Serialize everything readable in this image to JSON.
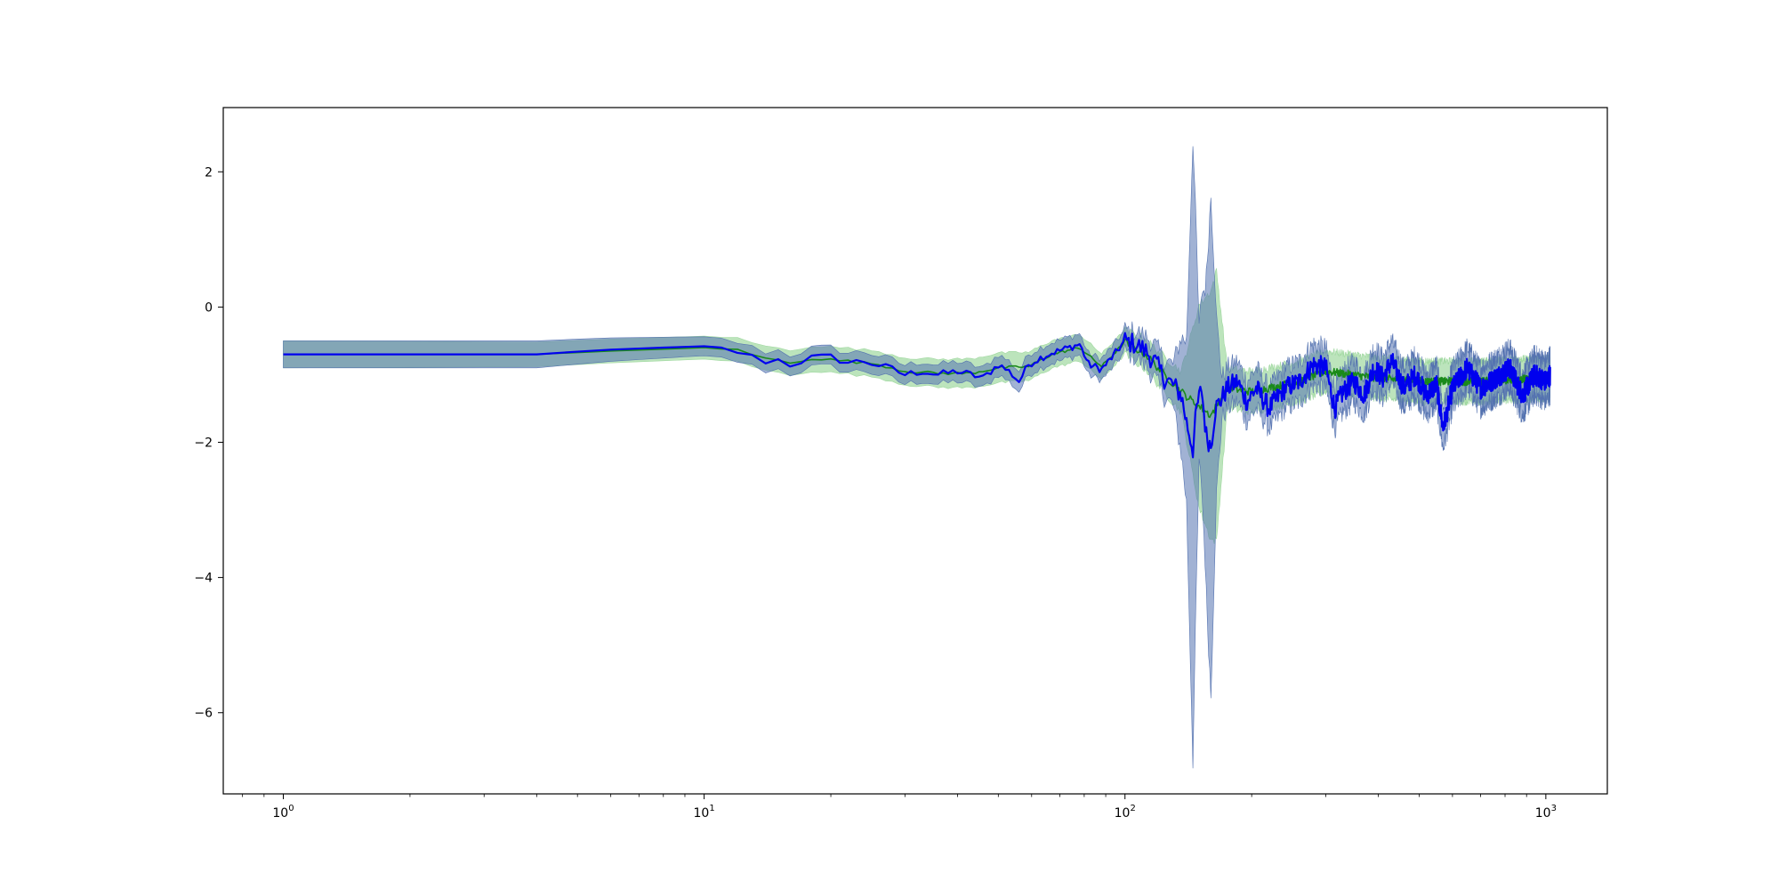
{
  "chart_data": {
    "type": "line",
    "title": "",
    "xlabel": "",
    "ylabel": "",
    "xscale": "log",
    "xlim": [
      0.72,
      1400
    ],
    "ylim": [
      -7.2,
      2.95
    ],
    "grid": false,
    "x_ticks": [
      {
        "value": 1,
        "base": "10",
        "exp": "0"
      },
      {
        "value": 10,
        "base": "10",
        "exp": "1"
      },
      {
        "value": 100,
        "base": "10",
        "exp": "2"
      },
      {
        "value": 1000,
        "base": "10",
        "exp": "3"
      }
    ],
    "y_ticks": [
      {
        "value": 2,
        "label": "2"
      },
      {
        "value": 0,
        "label": "0"
      },
      {
        "value": -2,
        "label": "−2"
      },
      {
        "value": -4,
        "label": "−4"
      },
      {
        "value": -6,
        "label": "−6"
      }
    ],
    "series": [
      {
        "color": "#0000ee",
        "band_color": "#5472b0",
        "points": [
          [
            1,
            -0.7
          ],
          [
            2,
            -0.7
          ],
          [
            4,
            -0.7
          ],
          [
            5,
            -0.66
          ],
          [
            6,
            -0.63
          ],
          [
            8,
            -0.6
          ],
          [
            10,
            -0.58
          ],
          [
            11,
            -0.6
          ],
          [
            12,
            -0.66
          ],
          [
            13,
            -0.74
          ],
          [
            14,
            -0.8
          ],
          [
            15,
            -0.78
          ],
          [
            16,
            -0.85
          ],
          [
            17,
            -0.8
          ],
          [
            18,
            -0.75
          ],
          [
            20,
            -0.74
          ],
          [
            22,
            -0.82
          ],
          [
            24,
            -0.8
          ],
          [
            26,
            -0.86
          ],
          [
            28,
            -0.92
          ],
          [
            30,
            -1.0
          ],
          [
            33,
            -0.95
          ],
          [
            36,
            -1.0
          ],
          [
            40,
            -0.95
          ],
          [
            43,
            -1.0
          ],
          [
            46,
            -1.05
          ],
          [
            50,
            -0.85
          ],
          [
            53,
            -0.95
          ],
          [
            56,
            -1.1
          ],
          [
            59,
            -0.85
          ],
          [
            63,
            -0.75
          ],
          [
            67,
            -0.68
          ],
          [
            72,
            -0.62
          ],
          [
            78,
            -0.55
          ],
          [
            82,
            -0.85
          ],
          [
            88,
            -0.92
          ],
          [
            93,
            -0.75
          ],
          [
            100,
            -0.5
          ],
          [
            106,
            -0.55
          ],
          [
            112,
            -0.65
          ],
          [
            118,
            -0.82
          ],
          [
            124,
            -1.05
          ],
          [
            130,
            -1.15
          ],
          [
            136,
            -1.3
          ],
          [
            140,
            -1.7
          ],
          [
            145,
            -2.1
          ],
          [
            148,
            -1.5
          ],
          [
            152,
            -1.2
          ],
          [
            156,
            -1.9
          ],
          [
            160,
            -2.05
          ],
          [
            164,
            -1.5
          ],
          [
            168,
            -1.4
          ],
          [
            175,
            -1.2
          ],
          [
            185,
            -1.1
          ],
          [
            195,
            -1.4
          ],
          [
            205,
            -1.2
          ],
          [
            220,
            -1.5
          ],
          [
            240,
            -1.2
          ],
          [
            260,
            -1.1
          ],
          [
            280,
            -0.85
          ],
          [
            300,
            -0.9
          ],
          [
            315,
            -1.5
          ],
          [
            330,
            -1.25
          ],
          [
            350,
            -1.1
          ],
          [
            370,
            -1.3
          ],
          [
            390,
            -0.9
          ],
          [
            410,
            -1.05
          ],
          [
            430,
            -0.8
          ],
          [
            460,
            -1.2
          ],
          [
            490,
            -1.0
          ],
          [
            520,
            -1.3
          ],
          [
            550,
            -1.15
          ],
          [
            570,
            -1.8
          ],
          [
            600,
            -1.2
          ],
          [
            650,
            -0.9
          ],
          [
            700,
            -1.2
          ],
          [
            760,
            -1.05
          ],
          [
            820,
            -0.9
          ],
          [
            880,
            -1.3
          ],
          [
            940,
            -1.0
          ],
          [
            1000,
            -1.1
          ],
          [
            1024,
            -1.0
          ]
        ],
        "band_half_width": [
          [
            1,
            0.2
          ],
          [
            4,
            0.2
          ],
          [
            10,
            0.14
          ],
          [
            30,
            0.14
          ],
          [
            100,
            0.16
          ],
          [
            130,
            0.3
          ],
          [
            140,
            1.2
          ],
          [
            145,
            4.6
          ],
          [
            150,
            1.0
          ],
          [
            155,
            2.0
          ],
          [
            160,
            3.7
          ],
          [
            165,
            1.3
          ],
          [
            170,
            0.3
          ],
          [
            200,
            0.3
          ],
          [
            1024,
            0.3
          ]
        ]
      },
      {
        "color": "#1a8a1a",
        "band_color": "#9fd89f",
        "points": [
          [
            1,
            -0.7
          ],
          [
            4,
            -0.7
          ],
          [
            6,
            -0.65
          ],
          [
            10,
            -0.6
          ],
          [
            12,
            -0.64
          ],
          [
            14,
            -0.76
          ],
          [
            16,
            -0.82
          ],
          [
            18,
            -0.76
          ],
          [
            22,
            -0.8
          ],
          [
            26,
            -0.85
          ],
          [
            30,
            -0.95
          ],
          [
            36,
            -0.98
          ],
          [
            43,
            -0.98
          ],
          [
            50,
            -0.9
          ],
          [
            59,
            -0.88
          ],
          [
            67,
            -0.7
          ],
          [
            78,
            -0.6
          ],
          [
            88,
            -0.88
          ],
          [
            100,
            -0.52
          ],
          [
            112,
            -0.7
          ],
          [
            124,
            -1.0
          ],
          [
            136,
            -1.25
          ],
          [
            145,
            -1.4
          ],
          [
            160,
            -1.6
          ],
          [
            175,
            -1.2
          ],
          [
            200,
            -1.25
          ],
          [
            260,
            -1.1
          ],
          [
            300,
            -0.95
          ],
          [
            400,
            -1.05
          ],
          [
            500,
            -1.1
          ],
          [
            700,
            -1.1
          ],
          [
            1024,
            -1.05
          ]
        ],
        "band_half_width": [
          [
            1,
            0.2
          ],
          [
            10,
            0.17
          ],
          [
            30,
            0.2
          ],
          [
            50,
            0.22
          ],
          [
            100,
            0.18
          ],
          [
            136,
            0.3
          ],
          [
            150,
            1.5
          ],
          [
            165,
            2.0
          ],
          [
            175,
            0.3
          ],
          [
            1024,
            0.3
          ]
        ]
      }
    ]
  }
}
